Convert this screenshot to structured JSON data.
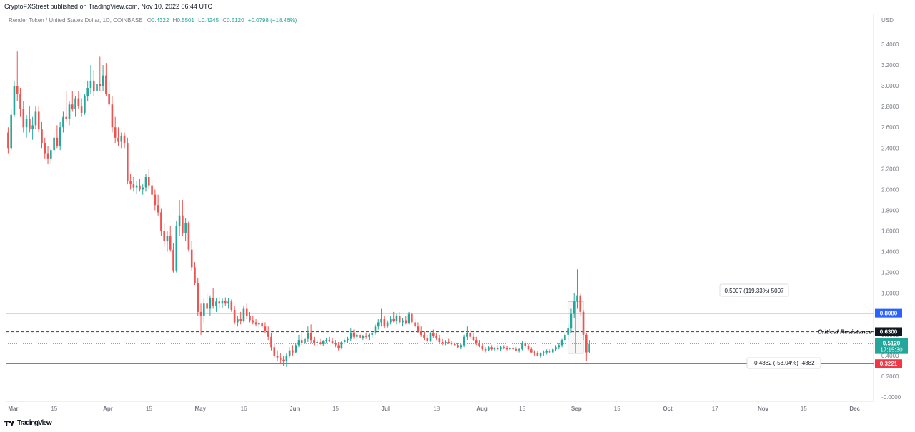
{
  "header": {
    "publisher_text": "CryptoFXStreet published on TradingView.com, Nov 10, 2022 06:44 UTC"
  },
  "legend": {
    "instrument": "Render Token / United States Dollar, 1D, COINBASE",
    "o_label": "O",
    "o_value": "0.4322",
    "h_label": "H",
    "h_value": "0.5501",
    "l_label": "L",
    "l_value": "0.4245",
    "c_label": "C",
    "c_value": "0.5120",
    "change": "+0.0798 (+18.46%)",
    "currency": "USD"
  },
  "footer": {
    "logo_icon": "tradingview-logo-icon",
    "brand": "TradingView"
  },
  "colors": {
    "up": "#26a69a",
    "down": "#ef5350",
    "blue_line": "#2962ff",
    "red_line": "#f23645",
    "dashed_line": "#555555",
    "label_black": "#131722"
  },
  "chart_data": {
    "type": "candlestick",
    "y_axis": {
      "min": -0.1,
      "max": 3.5,
      "position": "right",
      "tick_labels": [
        "3.4000",
        "3.2000",
        "3.0000",
        "2.8000",
        "2.6000",
        "2.4000",
        "2.2000",
        "2.0000",
        "1.8000",
        "1.6000",
        "1.4000",
        "1.2000",
        "1.0000",
        "0.8000",
        "0.6000",
        "0.4000",
        "0.2000",
        "-0.0000"
      ],
      "tick_values": [
        3.4,
        3.2,
        3.0,
        2.8,
        2.6,
        2.4,
        2.2,
        2.0,
        1.8,
        1.6,
        1.4,
        1.2,
        1.0,
        0.8,
        0.6,
        0.4,
        0.2,
        0.0
      ]
    },
    "x_axis": {
      "tick_labels": [
        "Mar",
        "15",
        "Apr",
        "15",
        "May",
        "16",
        "Jun",
        "15",
        "Jul",
        "18",
        "Aug",
        "15",
        "Sep",
        "15",
        "Oct",
        "17",
        "Nov",
        "15",
        "Dec"
      ],
      "tick_days": [
        0,
        14,
        31,
        45,
        61,
        76,
        92,
        106,
        122,
        139,
        153,
        167,
        184,
        198,
        214,
        230,
        245,
        259,
        275
      ]
    },
    "candles": [
      [
        0,
        2.55,
        2.6,
        2.35,
        2.4
      ],
      [
        1,
        2.4,
        2.78,
        2.38,
        2.72
      ],
      [
        2,
        2.72,
        3.05,
        2.7,
        3.0
      ],
      [
        3,
        3.0,
        3.33,
        2.85,
        2.92
      ],
      [
        4,
        2.92,
        2.98,
        2.7,
        2.78
      ],
      [
        5,
        2.78,
        2.85,
        2.55,
        2.6
      ],
      [
        6,
        2.6,
        2.72,
        2.5,
        2.68
      ],
      [
        7,
        2.68,
        2.8,
        2.55,
        2.58
      ],
      [
        8,
        2.58,
        2.7,
        2.48,
        2.62
      ],
      [
        9,
        2.62,
        2.8,
        2.58,
        2.75
      ],
      [
        10,
        2.75,
        2.8,
        2.55,
        2.58
      ],
      [
        11,
        2.58,
        2.65,
        2.4,
        2.45
      ],
      [
        12,
        2.45,
        2.5,
        2.3,
        2.35
      ],
      [
        13,
        2.35,
        2.42,
        2.25,
        2.3
      ],
      [
        14,
        2.3,
        2.4,
        2.25,
        2.38
      ],
      [
        15,
        2.38,
        2.55,
        2.35,
        2.5
      ],
      [
        16,
        2.5,
        2.62,
        2.4,
        2.42
      ],
      [
        17,
        2.42,
        2.65,
        2.38,
        2.6
      ],
      [
        18,
        2.6,
        2.75,
        2.55,
        2.7
      ],
      [
        19,
        2.7,
        2.95,
        2.65,
        2.68
      ],
      [
        20,
        2.68,
        2.85,
        2.62,
        2.82
      ],
      [
        21,
        2.82,
        2.95,
        2.75,
        2.78
      ],
      [
        22,
        2.78,
        2.9,
        2.7,
        2.88
      ],
      [
        23,
        2.88,
        2.95,
        2.78,
        2.8
      ],
      [
        24,
        2.8,
        2.88,
        2.7,
        2.74
      ],
      [
        25,
        2.74,
        2.92,
        2.72,
        2.9
      ],
      [
        26,
        2.9,
        3.05,
        2.85,
        2.98
      ],
      [
        27,
        2.98,
        3.2,
        2.92,
        3.05
      ],
      [
        28,
        3.05,
        3.15,
        2.9,
        2.95
      ],
      [
        29,
        2.95,
        3.25,
        2.9,
        3.02
      ],
      [
        30,
        3.02,
        3.28,
        2.95,
        3.0
      ],
      [
        31,
        3.0,
        3.2,
        2.95,
        3.1
      ],
      [
        32,
        3.1,
        3.22,
        2.9,
        2.92
      ],
      [
        33,
        2.92,
        3.05,
        2.8,
        2.82
      ],
      [
        34,
        2.82,
        2.9,
        2.55,
        2.6
      ],
      [
        35,
        2.6,
        2.7,
        2.45,
        2.5
      ],
      [
        36,
        2.5,
        2.6,
        2.42,
        2.46
      ],
      [
        37,
        2.46,
        2.55,
        2.4,
        2.52
      ],
      [
        38,
        2.52,
        2.55,
        2.4,
        2.45
      ],
      [
        39,
        2.45,
        2.5,
        2.05,
        2.08
      ],
      [
        40,
        2.08,
        2.15,
        2.0,
        2.05
      ],
      [
        41,
        2.05,
        2.12,
        1.98,
        2.02
      ],
      [
        42,
        2.02,
        2.08,
        1.96,
        2.04
      ],
      [
        43,
        2.04,
        2.1,
        1.98,
        2.0
      ],
      [
        44,
        2.0,
        2.05,
        1.95,
        2.02
      ],
      [
        45,
        2.02,
        2.15,
        1.98,
        2.12
      ],
      [
        46,
        2.12,
        2.2,
        2.0,
        2.04
      ],
      [
        47,
        2.04,
        2.1,
        1.9,
        1.95
      ],
      [
        48,
        1.95,
        2.0,
        1.8,
        1.85
      ],
      [
        49,
        1.85,
        1.95,
        1.75,
        1.78
      ],
      [
        50,
        1.78,
        1.82,
        1.55,
        1.6
      ],
      [
        51,
        1.6,
        1.68,
        1.45,
        1.5
      ],
      [
        52,
        1.5,
        1.6,
        1.4,
        1.55
      ],
      [
        53,
        1.55,
        1.65,
        1.4,
        1.42
      ],
      [
        54,
        1.42,
        1.48,
        1.2,
        1.22
      ],
      [
        55,
        1.22,
        1.7,
        1.2,
        1.65
      ],
      [
        56,
        1.65,
        1.9,
        1.55,
        1.75
      ],
      [
        57,
        1.75,
        1.9,
        1.55,
        1.58
      ],
      [
        58,
        1.58,
        1.72,
        1.5,
        1.68
      ],
      [
        59,
        1.68,
        1.7,
        1.4,
        1.42
      ],
      [
        60,
        1.42,
        1.5,
        1.22,
        1.25
      ],
      [
        61,
        1.25,
        1.3,
        1.08,
        1.1
      ],
      [
        62,
        1.1,
        1.15,
        0.78,
        0.82
      ],
      [
        63,
        0.82,
        0.9,
        0.6,
        0.78
      ],
      [
        64,
        0.78,
        0.95,
        0.72,
        0.9
      ],
      [
        65,
        0.9,
        1.0,
        0.8,
        0.85
      ],
      [
        66,
        0.85,
        0.98,
        0.78,
        0.95
      ],
      [
        67,
        0.95,
        1.05,
        0.85,
        0.88
      ],
      [
        68,
        0.88,
        0.95,
        0.82,
        0.92
      ],
      [
        69,
        0.92,
        0.96,
        0.85,
        0.9
      ],
      [
        70,
        0.9,
        0.95,
        0.86,
        0.93
      ],
      [
        71,
        0.93,
        0.96,
        0.88,
        0.9
      ],
      [
        72,
        0.9,
        0.95,
        0.85,
        0.92
      ],
      [
        73,
        0.92,
        0.94,
        0.82,
        0.84
      ],
      [
        74,
        0.84,
        0.88,
        0.7,
        0.72
      ],
      [
        75,
        0.72,
        0.78,
        0.68,
        0.75
      ],
      [
        76,
        0.75,
        0.82,
        0.7,
        0.73
      ],
      [
        77,
        0.73,
        0.88,
        0.72,
        0.85
      ],
      [
        78,
        0.85,
        0.9,
        0.75,
        0.78
      ],
      [
        79,
        0.78,
        0.82,
        0.72,
        0.74
      ],
      [
        80,
        0.74,
        0.78,
        0.7,
        0.72
      ],
      [
        81,
        0.72,
        0.75,
        0.68,
        0.7
      ],
      [
        82,
        0.7,
        0.74,
        0.67,
        0.71
      ],
      [
        83,
        0.71,
        0.73,
        0.67,
        0.68
      ],
      [
        84,
        0.68,
        0.72,
        0.62,
        0.64
      ],
      [
        85,
        0.64,
        0.68,
        0.55,
        0.58
      ],
      [
        86,
        0.58,
        0.62,
        0.45,
        0.48
      ],
      [
        87,
        0.48,
        0.52,
        0.38,
        0.4
      ],
      [
        88,
        0.4,
        0.45,
        0.35,
        0.38
      ],
      [
        89,
        0.38,
        0.42,
        0.33,
        0.36
      ],
      [
        90,
        0.36,
        0.4,
        0.3,
        0.35
      ],
      [
        91,
        0.35,
        0.42,
        0.29,
        0.4
      ],
      [
        92,
        0.4,
        0.48,
        0.38,
        0.45
      ],
      [
        93,
        0.45,
        0.5,
        0.4,
        0.43
      ],
      [
        94,
        0.43,
        0.52,
        0.42,
        0.5
      ],
      [
        95,
        0.5,
        0.6,
        0.48,
        0.55
      ],
      [
        96,
        0.55,
        0.62,
        0.5,
        0.52
      ],
      [
        97,
        0.52,
        0.58,
        0.48,
        0.56
      ],
      [
        98,
        0.56,
        0.68,
        0.53,
        0.62
      ],
      [
        99,
        0.62,
        0.7,
        0.52,
        0.55
      ],
      [
        100,
        0.55,
        0.58,
        0.5,
        0.52
      ],
      [
        101,
        0.52,
        0.55,
        0.49,
        0.53
      ],
      [
        102,
        0.53,
        0.56,
        0.5,
        0.51
      ],
      [
        103,
        0.51,
        0.55,
        0.49,
        0.54
      ],
      [
        104,
        0.54,
        0.57,
        0.52,
        0.55
      ],
      [
        105,
        0.55,
        0.58,
        0.53,
        0.54
      ],
      [
        106,
        0.54,
        0.57,
        0.51,
        0.52
      ],
      [
        107,
        0.52,
        0.55,
        0.48,
        0.5
      ],
      [
        108,
        0.5,
        0.53,
        0.45,
        0.47
      ],
      [
        109,
        0.47,
        0.54,
        0.46,
        0.53
      ],
      [
        110,
        0.53,
        0.56,
        0.51,
        0.55
      ],
      [
        111,
        0.55,
        0.58,
        0.52,
        0.56
      ],
      [
        112,
        0.56,
        0.66,
        0.54,
        0.62
      ],
      [
        113,
        0.62,
        0.65,
        0.56,
        0.58
      ],
      [
        114,
        0.58,
        0.62,
        0.55,
        0.6
      ],
      [
        115,
        0.6,
        0.63,
        0.56,
        0.57
      ],
      [
        116,
        0.57,
        0.6,
        0.55,
        0.59
      ],
      [
        117,
        0.59,
        0.62,
        0.56,
        0.58
      ],
      [
        118,
        0.58,
        0.61,
        0.55,
        0.6
      ],
      [
        119,
        0.6,
        0.64,
        0.57,
        0.62
      ],
      [
        120,
        0.62,
        0.7,
        0.6,
        0.68
      ],
      [
        121,
        0.68,
        0.75,
        0.65,
        0.72
      ],
      [
        122,
        0.72,
        0.85,
        0.68,
        0.75
      ],
      [
        123,
        0.75,
        0.78,
        0.66,
        0.68
      ],
      [
        124,
        0.68,
        0.74,
        0.66,
        0.72
      ],
      [
        125,
        0.72,
        0.78,
        0.7,
        0.75
      ],
      [
        126,
        0.75,
        0.82,
        0.72,
        0.73
      ],
      [
        127,
        0.73,
        0.8,
        0.7,
        0.78
      ],
      [
        128,
        0.78,
        0.82,
        0.7,
        0.72
      ],
      [
        129,
        0.72,
        0.76,
        0.68,
        0.74
      ],
      [
        130,
        0.74,
        0.78,
        0.7,
        0.71
      ],
      [
        131,
        0.71,
        0.82,
        0.7,
        0.8
      ],
      [
        132,
        0.8,
        0.82,
        0.7,
        0.72
      ],
      [
        133,
        0.72,
        0.75,
        0.66,
        0.68
      ],
      [
        134,
        0.68,
        0.72,
        0.62,
        0.64
      ],
      [
        135,
        0.64,
        0.68,
        0.58,
        0.6
      ],
      [
        136,
        0.6,
        0.63,
        0.55,
        0.57
      ],
      [
        137,
        0.57,
        0.6,
        0.52,
        0.54
      ],
      [
        138,
        0.54,
        0.63,
        0.53,
        0.62
      ],
      [
        139,
        0.62,
        0.65,
        0.57,
        0.59
      ],
      [
        140,
        0.59,
        0.62,
        0.55,
        0.57
      ],
      [
        141,
        0.57,
        0.6,
        0.52,
        0.53
      ],
      [
        142,
        0.53,
        0.56,
        0.5,
        0.52
      ],
      [
        143,
        0.52,
        0.55,
        0.5,
        0.53
      ],
      [
        144,
        0.53,
        0.56,
        0.51,
        0.52
      ],
      [
        145,
        0.52,
        0.54,
        0.5,
        0.51
      ],
      [
        146,
        0.51,
        0.53,
        0.49,
        0.5
      ],
      [
        147,
        0.5,
        0.52,
        0.47,
        0.48
      ],
      [
        148,
        0.48,
        0.51,
        0.46,
        0.5
      ],
      [
        149,
        0.5,
        0.6,
        0.48,
        0.58
      ],
      [
        150,
        0.58,
        0.68,
        0.55,
        0.62
      ],
      [
        151,
        0.62,
        0.65,
        0.56,
        0.58
      ],
      [
        152,
        0.58,
        0.62,
        0.54,
        0.55
      ],
      [
        153,
        0.55,
        0.58,
        0.5,
        0.52
      ],
      [
        154,
        0.52,
        0.55,
        0.48,
        0.49
      ],
      [
        155,
        0.49,
        0.51,
        0.45,
        0.46
      ],
      [
        156,
        0.46,
        0.48,
        0.43,
        0.45
      ],
      [
        157,
        0.45,
        0.49,
        0.44,
        0.48
      ],
      [
        158,
        0.48,
        0.5,
        0.45,
        0.46
      ],
      [
        159,
        0.46,
        0.48,
        0.44,
        0.47
      ],
      [
        160,
        0.47,
        0.5,
        0.45,
        0.46
      ],
      [
        161,
        0.46,
        0.49,
        0.44,
        0.48
      ],
      [
        162,
        0.48,
        0.5,
        0.46,
        0.47
      ],
      [
        163,
        0.47,
        0.49,
        0.45,
        0.46
      ],
      [
        164,
        0.46,
        0.48,
        0.45,
        0.47
      ],
      [
        165,
        0.47,
        0.49,
        0.45,
        0.46
      ],
      [
        166,
        0.46,
        0.48,
        0.44,
        0.45
      ],
      [
        167,
        0.45,
        0.47,
        0.43,
        0.46
      ],
      [
        168,
        0.46,
        0.54,
        0.45,
        0.52
      ],
      [
        169,
        0.52,
        0.54,
        0.47,
        0.49
      ],
      [
        170,
        0.49,
        0.51,
        0.45,
        0.46
      ],
      [
        171,
        0.46,
        0.48,
        0.42,
        0.43
      ],
      [
        172,
        0.43,
        0.45,
        0.4,
        0.42
      ],
      [
        173,
        0.42,
        0.44,
        0.39,
        0.4
      ],
      [
        174,
        0.4,
        0.43,
        0.38,
        0.42
      ],
      [
        175,
        0.42,
        0.45,
        0.4,
        0.43
      ],
      [
        176,
        0.43,
        0.46,
        0.41,
        0.44
      ],
      [
        177,
        0.44,
        0.46,
        0.42,
        0.43
      ],
      [
        178,
        0.43,
        0.47,
        0.42,
        0.46
      ],
      [
        179,
        0.46,
        0.5,
        0.44,
        0.48
      ],
      [
        180,
        0.48,
        0.52,
        0.46,
        0.5
      ],
      [
        181,
        0.5,
        0.56,
        0.48,
        0.55
      ],
      [
        182,
        0.55,
        0.62,
        0.52,
        0.6
      ],
      [
        183,
        0.6,
        0.7,
        0.55,
        0.66
      ],
      [
        184,
        0.66,
        0.85,
        0.62,
        0.8
      ],
      [
        185,
        0.8,
        1.0,
        0.76,
        0.92
      ],
      [
        186,
        0.92,
        1.23,
        0.85,
        0.98
      ],
      [
        187,
        0.98,
        1.0,
        0.78,
        0.82
      ],
      [
        188,
        0.82,
        0.84,
        0.55,
        0.6
      ],
      [
        189,
        0.6,
        0.62,
        0.35,
        0.43
      ],
      [
        190,
        0.4322,
        0.5501,
        0.4245,
        0.512
      ]
    ],
    "horizontal_levels": [
      {
        "value": 0.808,
        "label": "0.8080",
        "style": "solid",
        "color": "#2962ff"
      },
      {
        "value": 0.63,
        "label": "0.6300",
        "style": "dashed",
        "color": "#555555",
        "annotation": "Critical Resistance"
      },
      {
        "value": 0.3221,
        "label": "0.3221",
        "style": "solid",
        "color": "#f23645"
      }
    ],
    "current_price": {
      "value": 0.512,
      "label": "0.5120",
      "countdown": "17:15:30"
    },
    "measure_up": {
      "text": "0.5007 (119.33%) 5007",
      "from_day": 183,
      "to_day": 188,
      "low": 0.42,
      "high": 0.92
    },
    "measure_down": {
      "text": "-0.4882 (-53.04%) -4882"
    }
  }
}
